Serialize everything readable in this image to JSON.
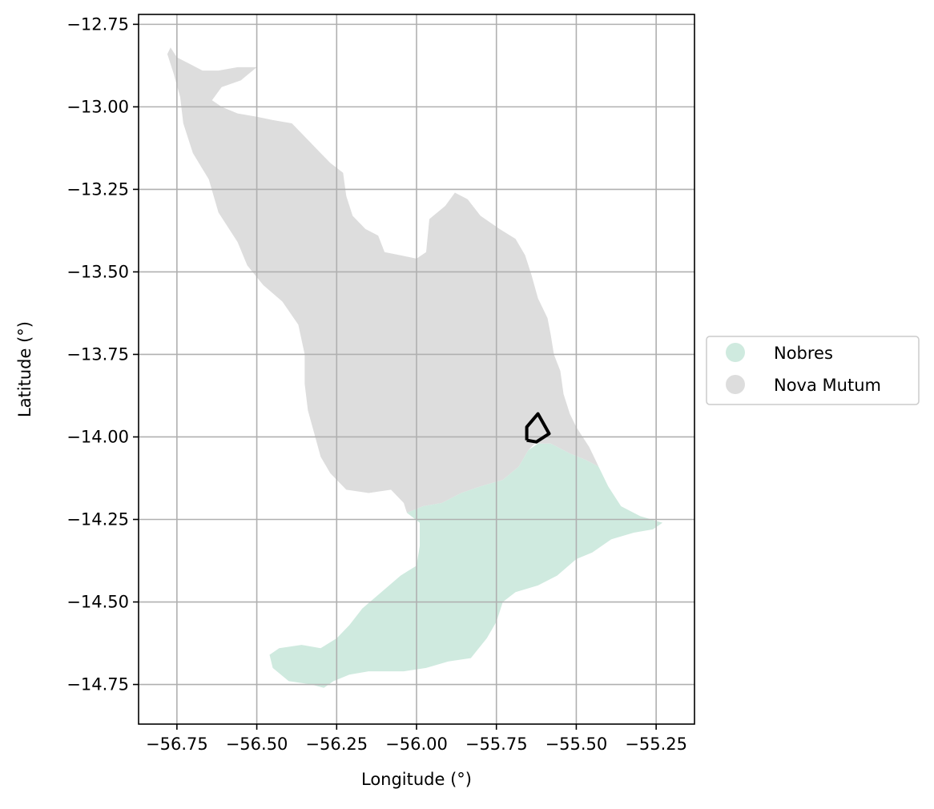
{
  "chart_data": {
    "type": "map",
    "xlabel": "Longitude (°)",
    "ylabel": "Latitude (°)",
    "xlim": [
      -56.87,
      -55.13
    ],
    "ylim": [
      -14.87,
      -12.72
    ],
    "xticks": [
      -56.75,
      -56.5,
      -56.25,
      -56.0,
      -55.75,
      -55.5,
      -55.25
    ],
    "xtick_labels": [
      "−56.75",
      "−56.50",
      "−56.25",
      "−56.00",
      "−55.75",
      "−55.50",
      "−55.25"
    ],
    "yticks": [
      -12.75,
      -13.0,
      -13.25,
      -13.5,
      -13.75,
      -14.0,
      -14.25,
      -14.5,
      -14.75
    ],
    "ytick_labels": [
      "−12.75",
      "−13.00",
      "−13.25",
      "−13.50",
      "−13.75",
      "−14.00",
      "−14.25",
      "−14.50",
      "−14.75"
    ],
    "grid": true,
    "legend_position": "center-right outside",
    "legend": [
      {
        "name": "Nobres",
        "color": "#cfeadf"
      },
      {
        "name": "Nova Mutum",
        "color": "#dddddd"
      }
    ],
    "regions": [
      {
        "name": "Nova Mutum",
        "color": "#dddddd",
        "polygon": [
          [
            -56.77,
            -12.82
          ],
          [
            -56.75,
            -12.85
          ],
          [
            -56.71,
            -12.87
          ],
          [
            -56.67,
            -12.89
          ],
          [
            -56.62,
            -12.89
          ],
          [
            -56.56,
            -12.88
          ],
          [
            -56.5,
            -12.88
          ],
          [
            -56.55,
            -12.92
          ],
          [
            -56.61,
            -12.94
          ],
          [
            -56.64,
            -12.98
          ],
          [
            -56.61,
            -13.0
          ],
          [
            -56.56,
            -13.02
          ],
          [
            -56.5,
            -13.03
          ],
          [
            -56.45,
            -13.04
          ],
          [
            -56.39,
            -13.05
          ],
          [
            -56.34,
            -13.1
          ],
          [
            -56.3,
            -13.14
          ],
          [
            -56.27,
            -13.17
          ],
          [
            -56.23,
            -13.2
          ],
          [
            -56.22,
            -13.27
          ],
          [
            -56.2,
            -13.33
          ],
          [
            -56.16,
            -13.37
          ],
          [
            -56.12,
            -13.39
          ],
          [
            -56.1,
            -13.44
          ],
          [
            -56.05,
            -13.45
          ],
          [
            -56.0,
            -13.46
          ],
          [
            -55.97,
            -13.44
          ],
          [
            -55.96,
            -13.34
          ],
          [
            -55.91,
            -13.3
          ],
          [
            -55.88,
            -13.26
          ],
          [
            -55.84,
            -13.28
          ],
          [
            -55.8,
            -13.33
          ],
          [
            -55.74,
            -13.37
          ],
          [
            -55.69,
            -13.4
          ],
          [
            -55.66,
            -13.45
          ],
          [
            -55.64,
            -13.51
          ],
          [
            -55.62,
            -13.58
          ],
          [
            -55.59,
            -13.64
          ],
          [
            -55.58,
            -13.69
          ],
          [
            -55.57,
            -13.75
          ],
          [
            -55.55,
            -13.8
          ],
          [
            -55.54,
            -13.87
          ],
          [
            -55.52,
            -13.93
          ],
          [
            -55.5,
            -13.97
          ],
          [
            -55.48,
            -14.0
          ],
          [
            -55.46,
            -14.03
          ],
          [
            -55.44,
            -14.07
          ],
          [
            -55.43,
            -14.09
          ],
          [
            -55.47,
            -14.07
          ],
          [
            -55.52,
            -14.05
          ],
          [
            -55.58,
            -14.02
          ],
          [
            -55.63,
            -14.02
          ],
          [
            -55.65,
            -14.04
          ],
          [
            -55.68,
            -14.09
          ],
          [
            -55.73,
            -14.13
          ],
          [
            -55.8,
            -14.15
          ],
          [
            -55.86,
            -14.17
          ],
          [
            -55.92,
            -14.2
          ],
          [
            -55.98,
            -14.21
          ],
          [
            -56.03,
            -14.23
          ],
          [
            -56.04,
            -14.2
          ],
          [
            -56.08,
            -14.16
          ],
          [
            -56.15,
            -14.17
          ],
          [
            -56.22,
            -14.16
          ],
          [
            -56.27,
            -14.11
          ],
          [
            -56.3,
            -14.06
          ],
          [
            -56.32,
            -13.99
          ],
          [
            -56.34,
            -13.92
          ],
          [
            -56.35,
            -13.84
          ],
          [
            -56.35,
            -13.75
          ],
          [
            -56.37,
            -13.66
          ],
          [
            -56.42,
            -13.59
          ],
          [
            -56.48,
            -13.54
          ],
          [
            -56.53,
            -13.48
          ],
          [
            -56.56,
            -13.41
          ],
          [
            -56.62,
            -13.32
          ],
          [
            -56.65,
            -13.22
          ],
          [
            -56.7,
            -13.14
          ],
          [
            -56.73,
            -13.05
          ],
          [
            -56.74,
            -12.97
          ],
          [
            -56.76,
            -12.9
          ],
          [
            -56.78,
            -12.84
          ]
        ]
      },
      {
        "name": "Nobres",
        "color": "#cfeadf",
        "polygon": [
          [
            -56.03,
            -14.23
          ],
          [
            -55.98,
            -14.21
          ],
          [
            -55.92,
            -14.2
          ],
          [
            -55.86,
            -14.17
          ],
          [
            -55.8,
            -14.15
          ],
          [
            -55.73,
            -14.13
          ],
          [
            -55.68,
            -14.09
          ],
          [
            -55.65,
            -14.04
          ],
          [
            -55.62,
            -14.02
          ],
          [
            -55.58,
            -14.02
          ],
          [
            -55.52,
            -14.05
          ],
          [
            -55.47,
            -14.07
          ],
          [
            -55.43,
            -14.09
          ],
          [
            -55.4,
            -14.15
          ],
          [
            -55.36,
            -14.21
          ],
          [
            -55.3,
            -14.24
          ],
          [
            -55.23,
            -14.26
          ],
          [
            -55.26,
            -14.28
          ],
          [
            -55.32,
            -14.29
          ],
          [
            -55.39,
            -14.31
          ],
          [
            -55.45,
            -14.35
          ],
          [
            -55.5,
            -14.37
          ],
          [
            -55.56,
            -14.42
          ],
          [
            -55.62,
            -14.45
          ],
          [
            -55.69,
            -14.47
          ],
          [
            -55.73,
            -14.5
          ],
          [
            -55.75,
            -14.56
          ],
          [
            -55.78,
            -14.61
          ],
          [
            -55.83,
            -14.67
          ],
          [
            -55.9,
            -14.68
          ],
          [
            -55.97,
            -14.7
          ],
          [
            -56.04,
            -14.71
          ],
          [
            -56.1,
            -14.71
          ],
          [
            -56.15,
            -14.71
          ],
          [
            -56.21,
            -14.72
          ],
          [
            -56.26,
            -14.74
          ],
          [
            -56.29,
            -14.76
          ],
          [
            -56.33,
            -14.75
          ],
          [
            -56.4,
            -14.74
          ],
          [
            -56.45,
            -14.7
          ],
          [
            -56.46,
            -14.66
          ],
          [
            -56.43,
            -14.64
          ],
          [
            -56.36,
            -14.63
          ],
          [
            -56.3,
            -14.64
          ],
          [
            -56.25,
            -14.61
          ],
          [
            -56.21,
            -14.57
          ],
          [
            -56.17,
            -14.52
          ],
          [
            -56.11,
            -14.47
          ],
          [
            -56.05,
            -14.42
          ],
          [
            -56.0,
            -14.39
          ],
          [
            -55.99,
            -14.33
          ],
          [
            -55.99,
            -14.26
          ]
        ]
      }
    ],
    "outline": {
      "color": "#000000",
      "polygon": [
        [
          -55.655,
          -14.01
        ],
        [
          -55.655,
          -13.97
        ],
        [
          -55.62,
          -13.93
        ],
        [
          -55.585,
          -13.99
        ],
        [
          -55.625,
          -14.015
        ],
        [
          -55.655,
          -14.01
        ]
      ]
    }
  }
}
